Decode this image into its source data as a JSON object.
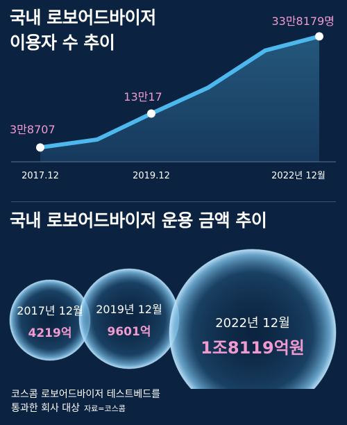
{
  "title1": "국내 로보어드바이저",
  "title1_line2": "이용자 수 추이",
  "title2": "국내 로보어드바이저 운용 금액 추이",
  "colors": {
    "background": "#0b2340",
    "line": "#4cb8ee",
    "area": "#1c4a6c",
    "label_pink": "#f19ad0",
    "bubble_edge": "#a9d8f5"
  },
  "chart_data": [
    {
      "type": "area",
      "x": [
        "2017.12",
        "2018.06",
        "2019.12",
        "2020.06",
        "2021.12",
        "2022.12"
      ],
      "values": [
        38707,
        60000,
        130017,
        200000,
        300000,
        338179
      ],
      "tick_labels": [
        "2017.12",
        "2019.12",
        "2022년 12월"
      ],
      "point_labels": [
        {
          "index": 0,
          "label": "3만8707"
        },
        {
          "index": 2,
          "label": "13만17"
        },
        {
          "index": 5,
          "label": "33만8179명"
        }
      ],
      "ylim": [
        0,
        380000
      ],
      "grid": false
    },
    {
      "type": "bubble",
      "categories": [
        "2017년 12월",
        "2019년 12월",
        "2022년 12월"
      ],
      "values": [
        4219,
        9601,
        18119
      ],
      "value_labels": [
        "4219억",
        "9601억",
        "1조8119억원"
      ]
    }
  ],
  "footnote": {
    "line1": "코스콤 로보어드바이저 테스트베드를",
    "line2": "통과한 회사 대상",
    "source": "자료=코스콤"
  }
}
